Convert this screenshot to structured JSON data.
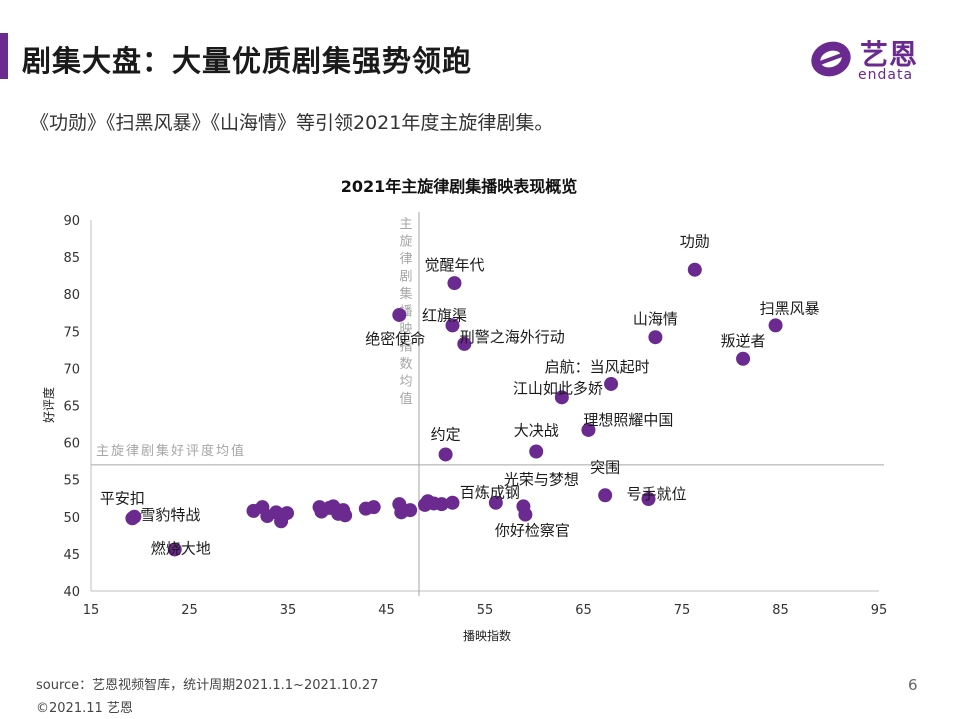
{
  "page": {
    "title": "剧集大盘：大量优质剧集强势领跑",
    "subtitle": "《功勋》《扫黑风暴》《山海情》等引领2021年度主旋律剧集。",
    "logo_cn": "艺恩",
    "logo_en": "endata",
    "source": "source：艺恩视频智库，统计周期2021.1.1~2021.10.27",
    "copyright": "©2021.11 艺恩",
    "page_number": "6",
    "accent_color": "#6a2a8f"
  },
  "chart_data": {
    "type": "scatter",
    "title": "2021年主旋律剧集播映表现概览",
    "xlabel": "播映指数",
    "ylabel": "好评度",
    "xlim": [
      15,
      95
    ],
    "ylim": [
      40,
      90
    ],
    "xticks": [
      "15",
      "25",
      "35",
      "45",
      "55",
      "65",
      "75",
      "85",
      "95"
    ],
    "yticks": [
      "40",
      "45",
      "50",
      "55",
      "60",
      "65",
      "70",
      "75",
      "80",
      "85",
      "90"
    ],
    "point_color": "#6a2a8f",
    "ref_lines": {
      "x_value": 48.3,
      "x_label": "主旋律剧集播映指数均值",
      "y_value": 57,
      "y_label": "主旋律剧集好评度均值"
    },
    "labeled_points": [
      {
        "label": "功勋",
        "x": 76.3,
        "y": 83.3
      },
      {
        "label": "扫黑风暴",
        "x": 84.5,
        "y": 75.8
      },
      {
        "label": "山海情",
        "x": 72.3,
        "y": 74.2
      },
      {
        "label": "叛逆者",
        "x": 81.2,
        "y": 71.3
      },
      {
        "label": "启航：当风起时",
        "x": 67.8,
        "y": 67.9
      },
      {
        "label": "觉醒年代",
        "x": 51.9,
        "y": 81.5
      },
      {
        "label": "红旗渠",
        "x": 51.7,
        "y": 75.8
      },
      {
        "label": "刑警之海外行动",
        "x": 52.9,
        "y": 73.3
      },
      {
        "label": "绝密使命",
        "x": 46.3,
        "y": 77.2
      },
      {
        "label": "江山如此多娇",
        "x": 62.8,
        "y": 66.1
      },
      {
        "label": "理想照耀中国",
        "x": 65.5,
        "y": 61.7
      },
      {
        "label": "大决战",
        "x": 60.2,
        "y": 58.8
      },
      {
        "label": "约定",
        "x": 51.0,
        "y": 58.4
      },
      {
        "label": "突围",
        "x": 67.2,
        "y": 52.9
      },
      {
        "label": "号手就位",
        "x": 71.6,
        "y": 52.4
      },
      {
        "label": "百炼成钢",
        "x": 56.1,
        "y": 51.9
      },
      {
        "label": "光荣与梦想",
        "x": 58.9,
        "y": 51.4
      },
      {
        "label": "你好检察官",
        "x": 59.1,
        "y": 50.3
      },
      {
        "label": "平安扣",
        "x": 19.2,
        "y": 49.8
      },
      {
        "label": "雪豹特战",
        "x": 19.4,
        "y": 50.0
      },
      {
        "label": "燃烧大地",
        "x": 23.5,
        "y": 45.6
      }
    ],
    "unlabeled_points": [
      {
        "x": 31.5,
        "y": 50.8
      },
      {
        "x": 32.4,
        "y": 51.3
      },
      {
        "x": 32.9,
        "y": 50.1
      },
      {
        "x": 33.8,
        "y": 50.6
      },
      {
        "x": 34.3,
        "y": 49.4
      },
      {
        "x": 34.9,
        "y": 50.5
      },
      {
        "x": 38.2,
        "y": 51.3
      },
      {
        "x": 38.4,
        "y": 50.7
      },
      {
        "x": 39.2,
        "y": 51.2
      },
      {
        "x": 39.6,
        "y": 51.4
      },
      {
        "x": 40.1,
        "y": 50.4
      },
      {
        "x": 40.6,
        "y": 50.9
      },
      {
        "x": 40.8,
        "y": 50.2
      },
      {
        "x": 42.9,
        "y": 51.1
      },
      {
        "x": 43.7,
        "y": 51.3
      },
      {
        "x": 46.3,
        "y": 51.7
      },
      {
        "x": 46.5,
        "y": 50.6
      },
      {
        "x": 47.4,
        "y": 50.9
      },
      {
        "x": 48.9,
        "y": 51.6
      },
      {
        "x": 49.2,
        "y": 52.1
      },
      {
        "x": 49.8,
        "y": 51.8
      },
      {
        "x": 50.6,
        "y": 51.7
      },
      {
        "x": 51.7,
        "y": 51.9
      }
    ]
  }
}
